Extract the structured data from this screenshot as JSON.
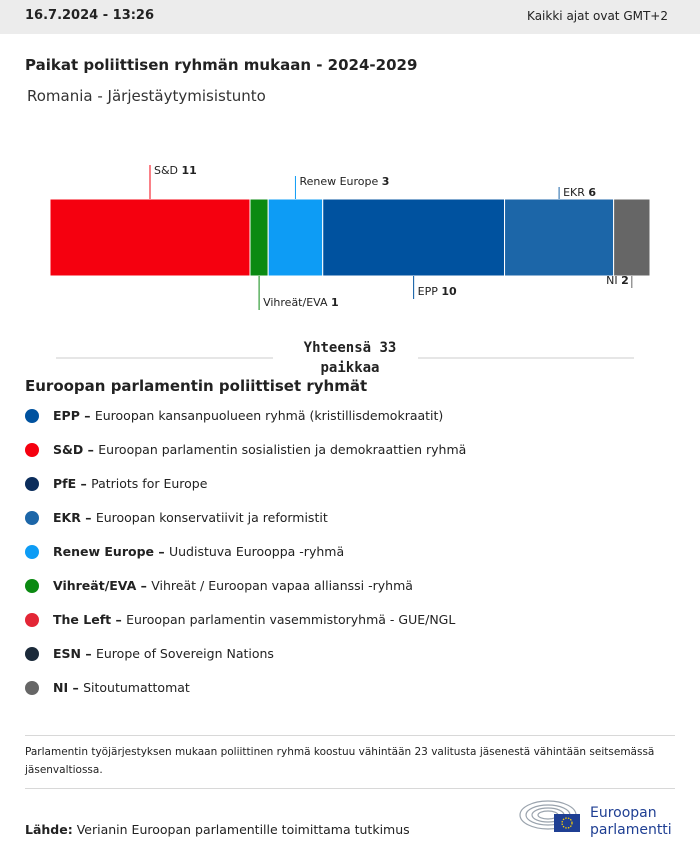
{
  "header": {
    "timestamp": "16.7.2024 - 13:26",
    "timezone": "Kaikki ajat ovat GMT+2"
  },
  "chart_data": {
    "type": "stacked-bar",
    "title": "Paikat poliittisen ryhmän mukaan - 2024-2029",
    "subtitle": "Romania - Järjestäytymisistunto",
    "categories": [
      "S&D",
      "Vihreät/EVA",
      "Renew Europe",
      "EPP",
      "EKR",
      "NI"
    ],
    "values": [
      11,
      1,
      3,
      10,
      6,
      2
    ],
    "colors": [
      "#f5000f",
      "#0b8a12",
      "#0d9cf5",
      "#00529f",
      "#1c66a8",
      "#666666"
    ],
    "total_label": "Yhteensä 33 paikkaa"
  },
  "legend": {
    "title": "Euroopan parlamentin poliittiset ryhmät",
    "items": [
      {
        "abbr": "EPP",
        "desc": "Euroopan kansanpuolueen ryhmä (kristillisdemokraatit)",
        "color": "#00529f"
      },
      {
        "abbr": "S&D",
        "desc": "Euroopan parlamentin sosialistien ja demokraattien ryhmä",
        "color": "#f5000f"
      },
      {
        "abbr": "PfE",
        "desc": "Patriots for Europe",
        "color": "#0b2d5c"
      },
      {
        "abbr": "EKR",
        "desc": "Euroopan konservatiivit ja reformistit",
        "color": "#1c66a8"
      },
      {
        "abbr": "Renew Europe",
        "desc": "Uudistuva Eurooppa -ryhmä",
        "color": "#0d9cf5"
      },
      {
        "abbr": "Vihreät/EVA",
        "desc": "Vihreät / Euroopan vapaa allianssi -ryhmä",
        "color": "#0b8a12"
      },
      {
        "abbr": "The Left",
        "desc": "Euroopan parlamentin vasemmistoryhmä - GUE/NGL",
        "color": "#e32636"
      },
      {
        "abbr": "ESN",
        "desc": "Europe of Sovereign Nations",
        "color": "#1b2a3a"
      },
      {
        "abbr": "NI",
        "desc": "Sitoutumattomat",
        "color": "#666666"
      }
    ]
  },
  "note": "Parlamentin työjärjestyksen mukaan poliittinen ryhmä koostuu vähintään 23 valitusta jäsenestä vähintään seitsemässä jäsenvaltiossa.",
  "source": {
    "label": "Lähde:",
    "text": "Verianin Euroopan parlamentille toimittama tutkimus"
  },
  "logo": {
    "line1": "Euroopan",
    "line2": "parlamentti"
  }
}
